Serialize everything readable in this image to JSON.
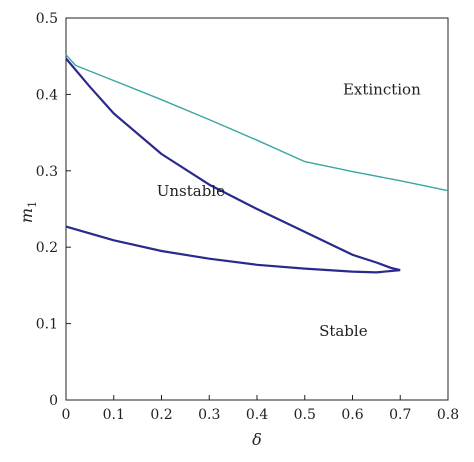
{
  "chart_data": {
    "type": "line",
    "xlabel": "δ",
    "ylabel_main": "m",
    "ylabel_sub": "1",
    "xlim": [
      0,
      0.8
    ],
    "ylim": [
      0,
      0.5
    ],
    "xticks": [
      "0",
      "0.1",
      "0.2",
      "0.3",
      "0.4",
      "0.5",
      "0.6",
      "0.7",
      "0.8"
    ],
    "yticks": [
      "0",
      "0.1",
      "0.2",
      "0.3",
      "0.4",
      "0.5"
    ],
    "grid": false,
    "series": [
      {
        "role": "extinction-boundary",
        "color": "#3aa6a3",
        "x": [
          0,
          0.02,
          0.1,
          0.2,
          0.3,
          0.4,
          0.5,
          0.6,
          0.7,
          0.8
        ],
        "y": [
          0.452,
          0.438,
          0.418,
          0.393,
          0.367,
          0.34,
          0.312,
          0.299,
          0.287,
          0.274
        ]
      },
      {
        "role": "stability-boundary-upper",
        "color": "#2a2a8c",
        "x": [
          0,
          0.05,
          0.1,
          0.2,
          0.3,
          0.4,
          0.5,
          0.6,
          0.65,
          0.68,
          0.7
        ],
        "y": [
          0.447,
          0.41,
          0.375,
          0.322,
          0.282,
          0.25,
          0.22,
          0.19,
          0.18,
          0.173,
          0.17
        ]
      },
      {
        "role": "stability-boundary-lower",
        "color": "#2a2a8c",
        "x": [
          0,
          0.1,
          0.2,
          0.3,
          0.4,
          0.5,
          0.6,
          0.65,
          0.7
        ],
        "y": [
          0.227,
          0.209,
          0.195,
          0.185,
          0.177,
          0.172,
          0.168,
          0.167,
          0.17
        ]
      }
    ],
    "annotations": [
      {
        "text": "Extinction",
        "x": 0.58,
        "y": 0.4
      },
      {
        "text": "Unstable",
        "x": 0.19,
        "y": 0.267
      },
      {
        "text": "Stable",
        "x": 0.53,
        "y": 0.084
      }
    ]
  }
}
